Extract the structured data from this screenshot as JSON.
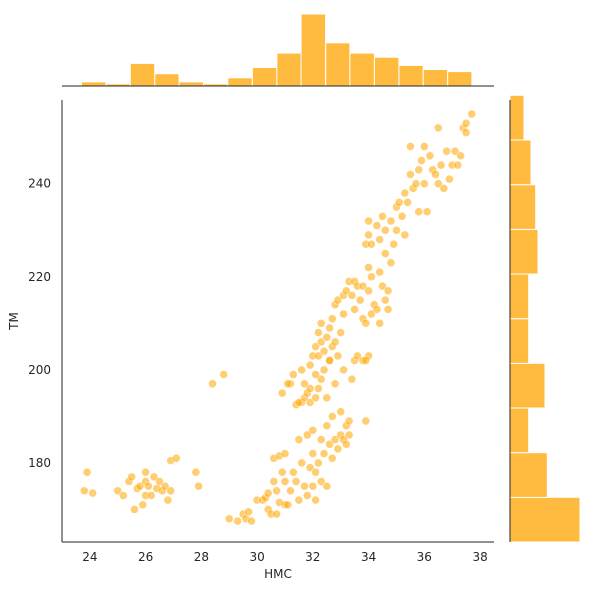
{
  "chart_data": {
    "type": "scatter",
    "subtype": "jointplot",
    "xlabel": "HMC",
    "ylabel": "TM",
    "xlim": [
      23,
      38.5
    ],
    "ylim": [
      163,
      258
    ],
    "xticks": [
      24,
      26,
      28,
      30,
      32,
      34,
      36,
      38
    ],
    "yticks": [
      180,
      200,
      220,
      240
    ],
    "grid": false,
    "colors": {
      "marker": "#FFA500",
      "bar": "#FFBB3F",
      "axis": "#262626"
    },
    "marker_alpha": 0.55,
    "points": [
      [
        23.8,
        174
      ],
      [
        23.9,
        178
      ],
      [
        24.1,
        173.5
      ],
      [
        25,
        174
      ],
      [
        25.2,
        173
      ],
      [
        25.4,
        176
      ],
      [
        25.5,
        177
      ],
      [
        25.6,
        170
      ],
      [
        25.7,
        174.5
      ],
      [
        25.8,
        175
      ],
      [
        25.9,
        171
      ],
      [
        26,
        173
      ],
      [
        26,
        176
      ],
      [
        26,
        178
      ],
      [
        26.1,
        175
      ],
      [
        26.2,
        173
      ],
      [
        26.3,
        177
      ],
      [
        26.4,
        174.5
      ],
      [
        26.5,
        176
      ],
      [
        26.6,
        174
      ],
      [
        26.7,
        175
      ],
      [
        26.8,
        172
      ],
      [
        26.9,
        174
      ],
      [
        26.9,
        180.5
      ],
      [
        27.1,
        181
      ],
      [
        27.8,
        178
      ],
      [
        27.9,
        175
      ],
      [
        28.4,
        197
      ],
      [
        28.8,
        199
      ],
      [
        29,
        168
      ],
      [
        29.3,
        167.5
      ],
      [
        29.5,
        169
      ],
      [
        29.6,
        168
      ],
      [
        29.7,
        169.5
      ],
      [
        29.8,
        167.5
      ],
      [
        30,
        172
      ],
      [
        30.2,
        172
      ],
      [
        30.3,
        172.5
      ],
      [
        30.4,
        170
      ],
      [
        30.4,
        173.5
      ],
      [
        30.5,
        169
      ],
      [
        30.6,
        176
      ],
      [
        30.6,
        181
      ],
      [
        30.7,
        174
      ],
      [
        30.7,
        169
      ],
      [
        30.8,
        171.5
      ],
      [
        30.8,
        181.5
      ],
      [
        30.9,
        178
      ],
      [
        30.9,
        195
      ],
      [
        31,
        171
      ],
      [
        31,
        176
      ],
      [
        31,
        182
      ],
      [
        31.1,
        171
      ],
      [
        31.2,
        174
      ],
      [
        31.2,
        197
      ],
      [
        31.3,
        178
      ],
      [
        31.4,
        176
      ],
      [
        31.4,
        192.5
      ],
      [
        31.5,
        185
      ],
      [
        31.5,
        172
      ],
      [
        31.6,
        180
      ],
      [
        31.6,
        193
      ],
      [
        31.7,
        175
      ],
      [
        31.7,
        197
      ],
      [
        31.8,
        173
      ],
      [
        31.8,
        186
      ],
      [
        31.9,
        179
      ],
      [
        31.9,
        193
      ],
      [
        32,
        175
      ],
      [
        32,
        182
      ],
      [
        32,
        187
      ],
      [
        32.1,
        172
      ],
      [
        32.1,
        178
      ],
      [
        32.1,
        194
      ],
      [
        32.2,
        180
      ],
      [
        32.2,
        196
      ],
      [
        32.3,
        176
      ],
      [
        32.3,
        185
      ],
      [
        32.3,
        198
      ],
      [
        32.4,
        182
      ],
      [
        32.4,
        200
      ],
      [
        32.5,
        175
      ],
      [
        32.5,
        188
      ],
      [
        32.5,
        194
      ],
      [
        32.6,
        184
      ],
      [
        32.6,
        202
      ],
      [
        32.7,
        181
      ],
      [
        32.7,
        190
      ],
      [
        32.8,
        185
      ],
      [
        32.8,
        197
      ],
      [
        32.9,
        183
      ],
      [
        32.9,
        203
      ],
      [
        33,
        186
      ],
      [
        33,
        191
      ],
      [
        33.1,
        185
      ],
      [
        33.1,
        200
      ],
      [
        33.2,
        188
      ],
      [
        33.2,
        184
      ],
      [
        33.3,
        186
      ],
      [
        33.3,
        189
      ],
      [
        31.1,
        197
      ],
      [
        31.3,
        199
      ],
      [
        31.5,
        193
      ],
      [
        31.6,
        200
      ],
      [
        31.7,
        194
      ],
      [
        31.8,
        195
      ],
      [
        31.9,
        196
      ],
      [
        31.9,
        201
      ],
      [
        32,
        203
      ],
      [
        32.1,
        205
      ],
      [
        32.1,
        199
      ],
      [
        32.2,
        208
      ],
      [
        32.2,
        203
      ],
      [
        32.3,
        206
      ],
      [
        32.3,
        210
      ],
      [
        32.4,
        204
      ],
      [
        32.5,
        207
      ],
      [
        32.6,
        209
      ],
      [
        32.6,
        202
      ],
      [
        32.7,
        211
      ],
      [
        32.7,
        205
      ],
      [
        32.8,
        206
      ],
      [
        32.8,
        214
      ],
      [
        32.9,
        215
      ],
      [
        33,
        208
      ],
      [
        33.1,
        216
      ],
      [
        33.1,
        212
      ],
      [
        33.2,
        217
      ],
      [
        33.3,
        219
      ],
      [
        33.4,
        216
      ],
      [
        33.5,
        213
      ],
      [
        33.5,
        219
      ],
      [
        33.6,
        218
      ],
      [
        33.7,
        215
      ],
      [
        33.8,
        218
      ],
      [
        33.8,
        211
      ],
      [
        33.9,
        210
      ],
      [
        34,
        222
      ],
      [
        34,
        217
      ],
      [
        34.1,
        220
      ],
      [
        34.1,
        212
      ],
      [
        34.2,
        214
      ],
      [
        34.3,
        213
      ],
      [
        34.4,
        210
      ],
      [
        34.4,
        221
      ],
      [
        34.5,
        218
      ],
      [
        34.6,
        215
      ],
      [
        34.7,
        217
      ],
      [
        34.7,
        213
      ],
      [
        33.5,
        202
      ],
      [
        33.6,
        203
      ],
      [
        33.8,
        202
      ],
      [
        33.4,
        198
      ],
      [
        33.9,
        189
      ],
      [
        34,
        203
      ],
      [
        33.9,
        202
      ],
      [
        33.9,
        227
      ],
      [
        34,
        229
      ],
      [
        34,
        232
      ],
      [
        34.1,
        227
      ],
      [
        34.3,
        231
      ],
      [
        34.4,
        228
      ],
      [
        34.5,
        233
      ],
      [
        34.6,
        230
      ],
      [
        34.6,
        225
      ],
      [
        34.8,
        232
      ],
      [
        34.8,
        223
      ],
      [
        34.9,
        227
      ],
      [
        35,
        235
      ],
      [
        35,
        230
      ],
      [
        35.1,
        236
      ],
      [
        35.2,
        233
      ],
      [
        35.3,
        229
      ],
      [
        35.3,
        238
      ],
      [
        35.4,
        236
      ],
      [
        35.5,
        242
      ],
      [
        35.5,
        248
      ],
      [
        35.6,
        239
      ],
      [
        35.7,
        240
      ],
      [
        35.8,
        243
      ],
      [
        35.8,
        234
      ],
      [
        35.9,
        245
      ],
      [
        36,
        248
      ],
      [
        36,
        240
      ],
      [
        36.1,
        234
      ],
      [
        36.2,
        246
      ],
      [
        36.3,
        243
      ],
      [
        36.4,
        242
      ],
      [
        36.5,
        252
      ],
      [
        36.5,
        240
      ],
      [
        36.6,
        244
      ],
      [
        36.7,
        239
      ],
      [
        36.8,
        247
      ],
      [
        36.9,
        241
      ],
      [
        37,
        244
      ],
      [
        37.1,
        247
      ],
      [
        37.2,
        244
      ],
      [
        37.3,
        246
      ],
      [
        37.4,
        252
      ],
      [
        37.5,
        253
      ],
      [
        37.5,
        251
      ],
      [
        37.7,
        255
      ]
    ],
    "marginal_x": {
      "bin_edges": [
        23.7,
        24.58,
        25.45,
        26.33,
        27.2,
        28.08,
        28.95,
        29.83,
        30.71,
        31.58,
        32.46,
        33.33,
        34.21,
        35.09,
        35.96,
        36.84,
        37.71
      ],
      "counts": [
        2,
        1,
        11,
        6,
        2,
        1,
        4,
        9,
        16,
        35,
        21,
        16,
        14,
        10,
        8,
        7
      ]
    },
    "marginal_y": {
      "bin_edges": [
        163,
        172.6,
        182.2,
        191.8,
        201.4,
        211,
        220.6,
        230.2,
        239.8,
        249.4,
        259
      ],
      "counts": [
        30,
        16,
        8,
        15,
        8,
        8,
        12,
        11,
        9,
        6
      ]
    }
  }
}
